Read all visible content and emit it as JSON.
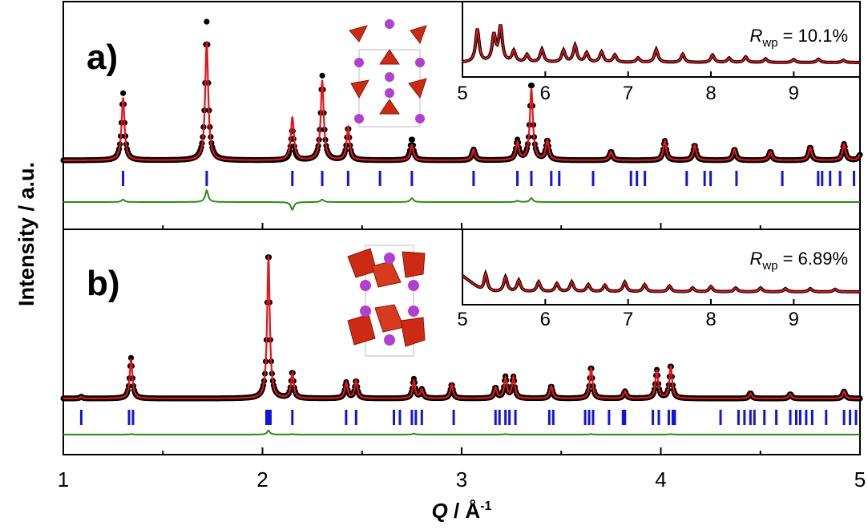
{
  "figure": {
    "ylabel": "Intensity / a.u.",
    "xlabel_main": "Q",
    "xlabel_unit": " / Å",
    "xlabel_sup": "-1"
  },
  "colors": {
    "observed": "#000000",
    "calculated": "#e8141a",
    "difference": "#2a8a14",
    "tick": "#1414d8",
    "polyhedron": "#cc2a14",
    "atom": "#b040d0"
  },
  "chart_data": [
    {
      "type": "line",
      "panel": "a)",
      "xlim": [
        1,
        5
      ],
      "series": [
        {
          "role": "observed",
          "peaks": [
            [
              1.3,
              0.62
            ],
            [
              1.72,
              1.28
            ],
            [
              2.15,
              0.28
            ],
            [
              2.3,
              0.78
            ],
            [
              2.43,
              0.3
            ],
            [
              2.75,
              0.2
            ],
            [
              3.06,
              0.1
            ],
            [
              3.28,
              0.18
            ],
            [
              3.35,
              0.72
            ],
            [
              3.43,
              0.18
            ],
            [
              3.75,
              0.08
            ],
            [
              4.02,
              0.18
            ],
            [
              4.17,
              0.14
            ],
            [
              4.37,
              0.1
            ],
            [
              4.55,
              0.08
            ],
            [
              4.75,
              0.12
            ],
            [
              4.92,
              0.15
            ],
            [
              5.0,
              0.05
            ]
          ]
        },
        {
          "role": "calculated",
          "peaks": [
            [
              1.3,
              0.58
            ],
            [
              1.72,
              1.1
            ],
            [
              2.15,
              0.4
            ],
            [
              2.3,
              0.74
            ],
            [
              2.43,
              0.3
            ],
            [
              2.75,
              0.14
            ],
            [
              3.06,
              0.1
            ],
            [
              3.28,
              0.16
            ],
            [
              3.35,
              0.66
            ],
            [
              3.43,
              0.18
            ],
            [
              3.75,
              0.08
            ],
            [
              4.02,
              0.18
            ],
            [
              4.17,
              0.14
            ],
            [
              4.37,
              0.1
            ],
            [
              4.55,
              0.08
            ],
            [
              4.75,
              0.12
            ],
            [
              4.92,
              0.15
            ],
            [
              5.0,
              0.05
            ]
          ]
        }
      ],
      "reflection_ticks": [
        1.3,
        1.72,
        2.15,
        2.3,
        2.43,
        2.59,
        2.75,
        3.06,
        3.28,
        3.35,
        3.45,
        3.49,
        3.66,
        3.85,
        3.88,
        3.92,
        4.13,
        4.22,
        4.25,
        4.38,
        4.61,
        4.79,
        4.81,
        4.85,
        4.9,
        4.97
      ],
      "inset": {
        "xlim": [
          5,
          9.8
        ],
        "tick_labels": [
          "5",
          "6",
          "7",
          "8",
          "9"
        ],
        "annotation_italic": "R",
        "annotation_sub": "wp",
        "annotation_value": " = 10.1%"
      }
    },
    {
      "type": "line",
      "panel": "b)",
      "xlim": [
        1,
        5
      ],
      "series": [
        {
          "role": "observed",
          "peaks": [
            [
              1.09,
              0.02
            ],
            [
              1.34,
              0.46
            ],
            [
              2.03,
              1.7
            ],
            [
              2.15,
              0.3
            ],
            [
              2.42,
              0.18
            ],
            [
              2.47,
              0.2
            ],
            [
              2.76,
              0.22
            ],
            [
              2.8,
              0.1
            ],
            [
              2.95,
              0.16
            ],
            [
              3.17,
              0.12
            ],
            [
              3.22,
              0.24
            ],
            [
              3.26,
              0.24
            ],
            [
              3.45,
              0.14
            ],
            [
              3.65,
              0.36
            ],
            [
              3.82,
              0.08
            ],
            [
              3.98,
              0.32
            ],
            [
              4.05,
              0.38
            ],
            [
              4.45,
              0.06
            ],
            [
              4.65,
              0.05
            ],
            [
              4.92,
              0.08
            ]
          ]
        },
        {
          "role": "calculated",
          "peaks": [
            [
              1.09,
              0.02
            ],
            [
              1.34,
              0.45
            ],
            [
              2.03,
              1.62
            ],
            [
              2.15,
              0.29
            ],
            [
              2.42,
              0.18
            ],
            [
              2.47,
              0.2
            ],
            [
              2.76,
              0.2
            ],
            [
              2.8,
              0.1
            ],
            [
              2.95,
              0.16
            ],
            [
              3.17,
              0.12
            ],
            [
              3.22,
              0.23
            ],
            [
              3.26,
              0.24
            ],
            [
              3.45,
              0.14
            ],
            [
              3.65,
              0.35
            ],
            [
              3.82,
              0.08
            ],
            [
              3.98,
              0.32
            ],
            [
              4.05,
              0.37
            ],
            [
              4.45,
              0.06
            ],
            [
              4.65,
              0.05
            ],
            [
              4.92,
              0.08
            ]
          ]
        }
      ],
      "reflection_ticks": [
        1.09,
        1.33,
        1.35,
        2.02,
        2.03,
        2.04,
        2.15,
        2.42,
        2.47,
        2.66,
        2.69,
        2.75,
        2.77,
        2.8,
        2.96,
        3.17,
        3.19,
        3.22,
        3.24,
        3.27,
        3.44,
        3.46,
        3.62,
        3.64,
        3.66,
        3.74,
        3.81,
        3.82,
        3.96,
        3.99,
        4.04,
        4.06,
        4.07,
        4.3,
        4.39,
        4.42,
        4.45,
        4.47,
        4.52,
        4.58,
        4.65,
        4.68,
        4.7,
        4.73,
        4.76,
        4.83,
        4.92,
        4.95,
        4.98
      ],
      "inset": {
        "xlim": [
          5,
          9.8
        ],
        "tick_labels": [
          "5",
          "6",
          "7",
          "8",
          "9"
        ],
        "annotation_italic": "R",
        "annotation_sub": "wp",
        "annotation_value": " = 6.89%"
      }
    }
  ],
  "x_axis": {
    "ticks": [
      1,
      2,
      3,
      4,
      5
    ],
    "tick_labels": [
      "1",
      "2",
      "3",
      "4",
      "5"
    ]
  }
}
